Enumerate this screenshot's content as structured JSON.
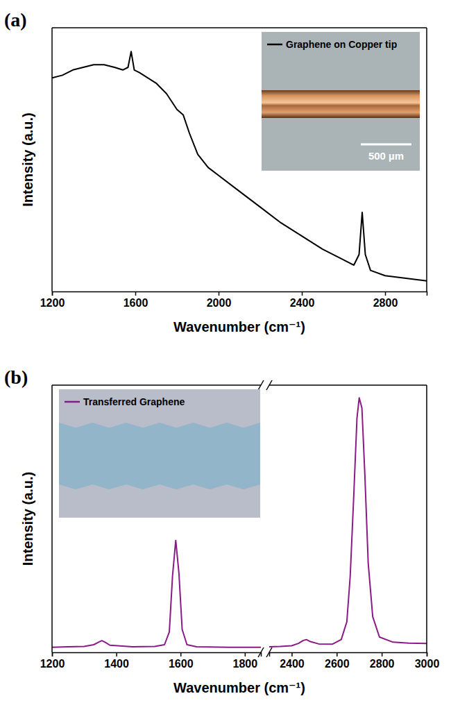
{
  "chart_data": [
    {
      "type": "line",
      "title": "(a)",
      "x_label": "Wavenumber (cm⁻¹)",
      "y_label": "Intensity (a.u.)",
      "x": [
        1200,
        1250,
        1300,
        1350,
        1400,
        1450,
        1500,
        1540,
        1565,
        1580,
        1595,
        1620,
        1700,
        1750,
        1800,
        1830,
        1860,
        1900,
        1950,
        2000,
        2100,
        2200,
        2300,
        2400,
        2500,
        2600,
        2650,
        2675,
        2690,
        2705,
        2730,
        2800,
        2900,
        3000
      ],
      "series": [
        {
          "name": "Graphene on Copper tip",
          "color": "#000000",
          "values": [
            81,
            82,
            84,
            85,
            86,
            86,
            85,
            84,
            85,
            91,
            84,
            83,
            79,
            75,
            69,
            67,
            60,
            52,
            47,
            44,
            38,
            32,
            26,
            21,
            16,
            12,
            10,
            14,
            30,
            14,
            8,
            6,
            5,
            4
          ]
        }
      ],
      "xlim": [
        1200,
        3000
      ],
      "xticks": [
        1200,
        1600,
        2000,
        2400,
        2800
      ],
      "ylim": [
        0,
        100
      ],
      "tick_labels": "x",
      "legend": "upper right",
      "annotations": [
        "500 µm"
      ]
    },
    {
      "type": "line",
      "title": "(b)",
      "x_label": "Wavenumber (cm⁻¹)",
      "y_label": "Intensity (a.u.)",
      "x": [
        1200,
        1250,
        1300,
        1330,
        1345,
        1355,
        1365,
        1380,
        1450,
        1520,
        1550,
        1565,
        1575,
        1585,
        1595,
        1605,
        1620,
        1650,
        1750,
        1850,
        2000,
        2300,
        2350,
        2400,
        2430,
        2450,
        2465,
        2480,
        2520,
        2580,
        2620,
        2645,
        2660,
        2675,
        2690,
        2700,
        2712,
        2725,
        2740,
        2760,
        2790,
        2850,
        2920,
        3000
      ],
      "series": [
        {
          "name": "Transferred Graphene",
          "color": "#8b1a89",
          "values": [
            2,
            2.2,
            2.3,
            3,
            4,
            4.6,
            4,
            2.8,
            2.2,
            2.3,
            3,
            8,
            30,
            44,
            31,
            9,
            3,
            2.2,
            2,
            2,
            null,
            2.2,
            2.3,
            2.6,
            3.5,
            4.6,
            5,
            4.3,
            3.3,
            3.2,
            5,
            12,
            30,
            60,
            92,
            100,
            96,
            70,
            35,
            14,
            6,
            4,
            3.6,
            3.5
          ]
        }
      ],
      "xlim": [
        1200,
        3000
      ],
      "x_break": [
        1850,
        2300
      ],
      "xticks": [
        1200,
        1400,
        1600,
        1800,
        2400,
        2600,
        2800,
        3000
      ],
      "ylim": [
        0,
        105
      ],
      "tick_labels": "x",
      "legend": "upper left"
    }
  ]
}
